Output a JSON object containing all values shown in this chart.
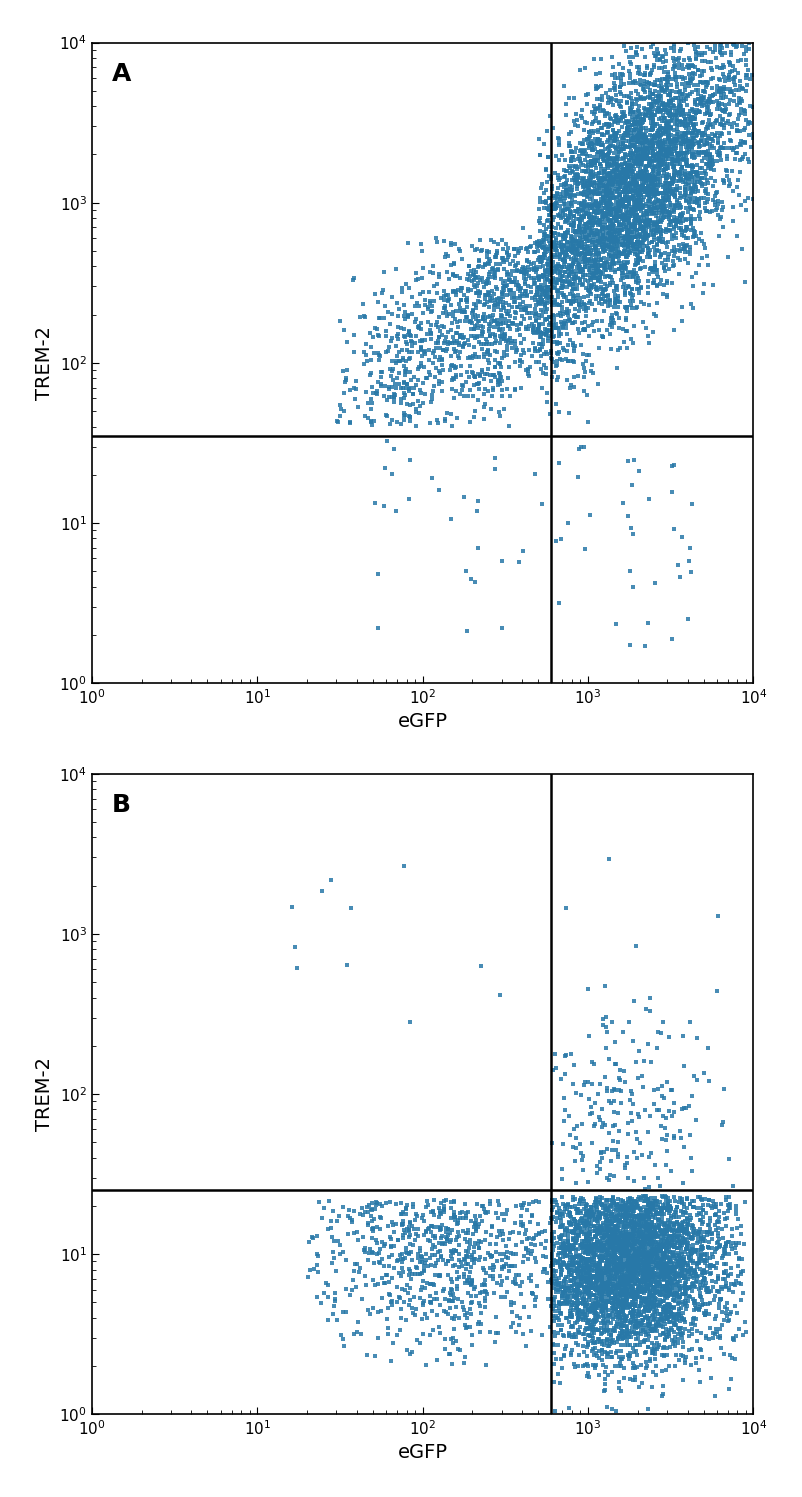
{
  "figsize": [
    8.02,
    14.97
  ],
  "dpi": 100,
  "dot_color": "#2878a8",
  "dot_size": 6,
  "dot_alpha": 0.85,
  "xlim": [
    1,
    10000
  ],
  "ylim": [
    1,
    10000
  ],
  "xlabel": "eGFP",
  "ylabel": "TREM-2",
  "label_fontsize": 14,
  "tick_fontsize": 11,
  "panel_label_fontsize": 18,
  "panel_A_label": "A",
  "panel_B_label": "B",
  "vline_A": 600,
  "hline_A": 35,
  "vline_B": 600,
  "hline_B": 25,
  "background_color": "#ffffff",
  "line_color": "black",
  "line_width": 1.8
}
